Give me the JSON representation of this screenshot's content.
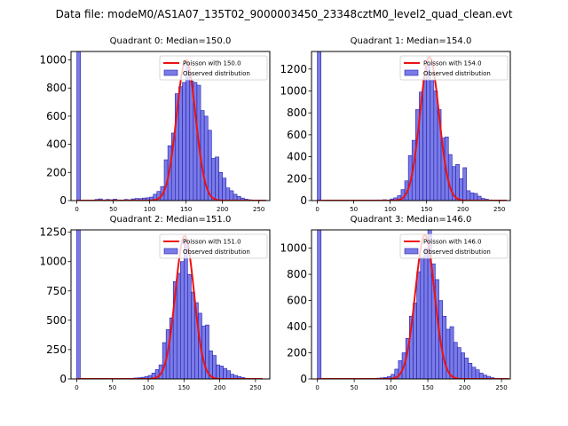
{
  "figure_title": "Data file: modeM0/AS1A07_135T02_9000003450_23348cztM0_level2_quad_clean.evt",
  "colors": {
    "bar_fill": "#7b7be6",
    "bar_edge": "#1f1fb4",
    "poisson_line": "#ee1111",
    "axis": "#000000"
  },
  "chart_data": [
    {
      "type": "bar",
      "title": "Quadrant 0: Median=150.0",
      "median": 150.0,
      "xlim": [
        -8,
        265
      ],
      "ylim": [
        0,
        1060
      ],
      "xticks": [
        0,
        50,
        100,
        150,
        200,
        250
      ],
      "yticks": [
        0,
        200,
        400,
        600,
        800,
        1000
      ],
      "bin_width": 5,
      "bins": [
        [
          0,
          1060
        ],
        [
          25,
          8
        ],
        [
          30,
          12
        ],
        [
          35,
          5
        ],
        [
          40,
          8
        ],
        [
          45,
          6
        ],
        [
          50,
          10
        ],
        [
          55,
          5
        ],
        [
          60,
          3
        ],
        [
          65,
          8
        ],
        [
          70,
          6
        ],
        [
          75,
          12
        ],
        [
          80,
          15
        ],
        [
          85,
          14
        ],
        [
          90,
          18
        ],
        [
          95,
          20
        ],
        [
          100,
          25
        ],
        [
          105,
          45
        ],
        [
          110,
          65
        ],
        [
          115,
          100
        ],
        [
          120,
          290
        ],
        [
          125,
          390
        ],
        [
          130,
          480
        ],
        [
          135,
          760
        ],
        [
          140,
          810
        ],
        [
          145,
          840
        ],
        [
          150,
          970
        ],
        [
          155,
          850
        ],
        [
          160,
          840
        ],
        [
          165,
          820
        ],
        [
          170,
          640
        ],
        [
          175,
          600
        ],
        [
          180,
          500
        ],
        [
          185,
          300
        ],
        [
          190,
          310
        ],
        [
          195,
          200
        ],
        [
          200,
          160
        ],
        [
          205,
          90
        ],
        [
          210,
          70
        ],
        [
          215,
          45
        ],
        [
          220,
          30
        ],
        [
          225,
          18
        ],
        [
          230,
          10
        ],
        [
          235,
          6
        ],
        [
          240,
          4
        ],
        [
          245,
          2
        ],
        [
          250,
          1
        ]
      ],
      "poisson_label": "Poisson with 150.0",
      "poisson_peak": 1000,
      "poisson_width": 13,
      "hist_label": "Observed distribution"
    },
    {
      "type": "bar",
      "title": "Quadrant 1: Median=154.0",
      "median": 154.0,
      "xlim": [
        -8,
        265
      ],
      "ylim": [
        0,
        1360
      ],
      "xticks": [
        0,
        50,
        100,
        150,
        200,
        250
      ],
      "yticks": [
        0,
        200,
        400,
        600,
        800,
        1000,
        1200
      ],
      "bin_width": 5,
      "bins": [
        [
          0,
          1360
        ],
        [
          50,
          4
        ],
        [
          60,
          3
        ],
        [
          70,
          5
        ],
        [
          80,
          6
        ],
        [
          90,
          8
        ],
        [
          100,
          15
        ],
        [
          105,
          25
        ],
        [
          110,
          45
        ],
        [
          115,
          100
        ],
        [
          120,
          180
        ],
        [
          125,
          410
        ],
        [
          130,
          550
        ],
        [
          135,
          830
        ],
        [
          140,
          990
        ],
        [
          145,
          1110
        ],
        [
          150,
          1240
        ],
        [
          155,
          1100
        ],
        [
          160,
          1000
        ],
        [
          165,
          830
        ],
        [
          170,
          570
        ],
        [
          175,
          580
        ],
        [
          180,
          420
        ],
        [
          185,
          310
        ],
        [
          190,
          330
        ],
        [
          195,
          200
        ],
        [
          200,
          300
        ],
        [
          205,
          90
        ],
        [
          210,
          70
        ],
        [
          215,
          65
        ],
        [
          220,
          40
        ],
        [
          225,
          20
        ],
        [
          230,
          12
        ],
        [
          235,
          6
        ],
        [
          240,
          3
        ],
        [
          250,
          1
        ]
      ],
      "poisson_label": "Poisson with 154.0",
      "poisson_peak": 1310,
      "poisson_width": 13,
      "hist_label": "Observed distribution"
    },
    {
      "type": "bar",
      "title": "Quadrant 2: Median=151.0",
      "median": 151.0,
      "xlim": [
        -8,
        270
      ],
      "ylim": [
        0,
        1270
      ],
      "xticks": [
        0,
        50,
        100,
        150,
        200,
        250
      ],
      "yticks": [
        0,
        250,
        500,
        750,
        1000,
        1250
      ],
      "bin_width": 5,
      "bins": [
        [
          0,
          1270
        ],
        [
          50,
          5
        ],
        [
          60,
          3
        ],
        [
          70,
          4
        ],
        [
          75,
          6
        ],
        [
          80,
          8
        ],
        [
          85,
          10
        ],
        [
          90,
          14
        ],
        [
          95,
          20
        ],
        [
          100,
          30
        ],
        [
          105,
          50
        ],
        [
          110,
          80
        ],
        [
          115,
          120
        ],
        [
          120,
          310
        ],
        [
          125,
          420
        ],
        [
          130,
          520
        ],
        [
          135,
          830
        ],
        [
          140,
          900
        ],
        [
          145,
          1000
        ],
        [
          150,
          1190
        ],
        [
          155,
          890
        ],
        [
          160,
          740
        ],
        [
          165,
          650
        ],
        [
          170,
          560
        ],
        [
          175,
          450
        ],
        [
          180,
          460
        ],
        [
          185,
          240
        ],
        [
          190,
          200
        ],
        [
          195,
          120
        ],
        [
          200,
          110
        ],
        [
          205,
          90
        ],
        [
          210,
          70
        ],
        [
          215,
          40
        ],
        [
          220,
          30
        ],
        [
          225,
          20
        ],
        [
          230,
          12
        ],
        [
          235,
          6
        ],
        [
          240,
          3
        ],
        [
          250,
          2
        ]
      ],
      "poisson_label": "Poisson with 151.0",
      "poisson_peak": 1220,
      "poisson_width": 13,
      "hist_label": "Observed distribution"
    },
    {
      "type": "bar",
      "title": "Quadrant 3: Median=146.0",
      "median": 146.0,
      "xlim": [
        -8,
        262
      ],
      "ylim": [
        0,
        1140
      ],
      "xticks": [
        0,
        50,
        100,
        150,
        200,
        250
      ],
      "yticks": [
        0,
        200,
        400,
        600,
        800,
        1000
      ],
      "bin_width": 5,
      "bins": [
        [
          0,
          1140
        ],
        [
          50,
          3
        ],
        [
          60,
          3
        ],
        [
          70,
          4
        ],
        [
          75,
          5
        ],
        [
          80,
          6
        ],
        [
          85,
          8
        ],
        [
          90,
          12
        ],
        [
          95,
          18
        ],
        [
          100,
          35
        ],
        [
          105,
          75
        ],
        [
          110,
          140
        ],
        [
          115,
          200
        ],
        [
          120,
          310
        ],
        [
          125,
          480
        ],
        [
          130,
          580
        ],
        [
          135,
          820
        ],
        [
          140,
          930
        ],
        [
          145,
          1000
        ],
        [
          150,
          1150
        ],
        [
          155,
          880
        ],
        [
          160,
          760
        ],
        [
          165,
          600
        ],
        [
          170,
          480
        ],
        [
          175,
          380
        ],
        [
          180,
          400
        ],
        [
          185,
          280
        ],
        [
          190,
          240
        ],
        [
          195,
          200
        ],
        [
          200,
          160
        ],
        [
          205,
          120
        ],
        [
          210,
          90
        ],
        [
          215,
          70
        ],
        [
          220,
          45
        ],
        [
          225,
          30
        ],
        [
          230,
          20
        ],
        [
          235,
          10
        ],
        [
          240,
          5
        ],
        [
          245,
          3
        ]
      ],
      "poisson_label": "Poisson with 146.0",
      "poisson_peak": 1100,
      "poisson_width": 13,
      "hist_label": "Observed distribution"
    }
  ]
}
